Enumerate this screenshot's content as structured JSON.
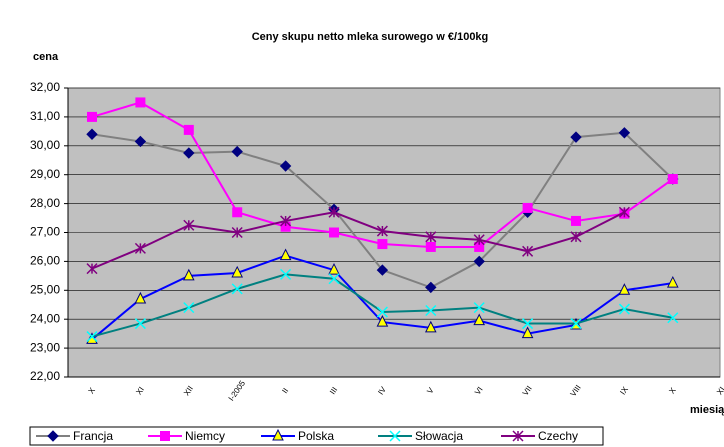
{
  "chart_data": {
    "type": "line",
    "title": "Ceny skupu netto mleka surowego  w €/100kg",
    "y_label": "cena",
    "x_label": "miesiąc",
    "categories": [
      "X",
      "XI",
      "XII",
      "I-2005",
      "II",
      "III",
      "IV",
      "V",
      "VI",
      "VII",
      "VIII",
      "IX",
      "X",
      "XI"
    ],
    "series": [
      {
        "name": "Francja",
        "color": "#808080",
        "marker_color": "#000080",
        "marker": "diamond",
        "values": [
          30.4,
          30.15,
          29.75,
          29.8,
          29.3,
          27.8,
          25.7,
          25.1,
          26.0,
          27.7,
          30.3,
          30.45,
          28.85,
          null
        ]
      },
      {
        "name": "Niemcy",
        "color": "#ff00ff",
        "marker_color": "#ff00ff",
        "marker": "square",
        "values": [
          31.0,
          31.5,
          30.55,
          27.7,
          27.2,
          27.0,
          26.6,
          26.5,
          26.5,
          27.85,
          27.4,
          27.65,
          28.85,
          null
        ]
      },
      {
        "name": "Polska",
        "color": "#0000ff",
        "marker_color": "#ffff00",
        "marker": "triangle",
        "values": [
          23.3,
          24.7,
          25.5,
          25.6,
          26.2,
          25.7,
          23.9,
          23.7,
          23.95,
          23.5,
          23.8,
          25.0,
          25.25,
          null
        ]
      },
      {
        "name": "Słowacja",
        "color": "#008080",
        "marker_color": "#00ffff",
        "marker": "x",
        "values": [
          23.4,
          23.85,
          24.4,
          25.05,
          25.55,
          25.4,
          24.25,
          24.3,
          24.4,
          23.85,
          23.85,
          24.35,
          24.05,
          null
        ]
      },
      {
        "name": "Czechy",
        "color": "#800080",
        "marker_color": "#800080",
        "marker": "star",
        "values": [
          25.75,
          26.45,
          27.25,
          27.0,
          27.4,
          27.7,
          27.05,
          26.85,
          26.75,
          26.35,
          26.85,
          27.7,
          null,
          null
        ]
      }
    ],
    "ylim": [
      22,
      32
    ],
    "yticks": [
      {
        "value": 22,
        "label": "22,00"
      },
      {
        "value": 23,
        "label": "23,00"
      },
      {
        "value": 24,
        "label": "24,00"
      },
      {
        "value": 25,
        "label": "25,00"
      },
      {
        "value": 26,
        "label": "26,00"
      },
      {
        "value": 27,
        "label": "27,00"
      },
      {
        "value": 28,
        "label": "28,00"
      },
      {
        "value": 29,
        "label": "29,00"
      },
      {
        "value": 30,
        "label": "30,00"
      },
      {
        "value": 31,
        "label": "31,00"
      },
      {
        "value": 32,
        "label": "32,00"
      }
    ],
    "grid": true,
    "plot_background": "#c0c0c0",
    "legend": "bottom"
  }
}
